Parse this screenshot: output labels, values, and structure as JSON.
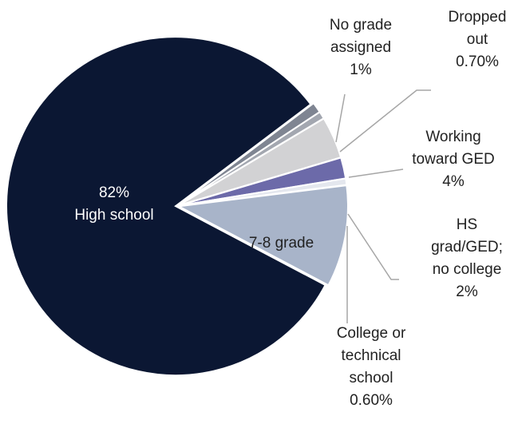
{
  "chart_data": {
    "type": "pie",
    "categories": [
      "High school",
      "No grade assigned",
      "Dropped out",
      "Working toward GED",
      "HS grad/GED; no college",
      "College or technical school",
      "7-8 grade"
    ],
    "values": [
      82,
      1,
      0.7,
      4,
      2,
      0.6,
      9.7
    ],
    "value_labels": [
      "82%",
      "1%",
      "0.70%",
      "4%",
      "2%",
      "0.60%",
      null
    ],
    "colors": [
      "#0b1733",
      "#7f8592",
      "#a3a7b0",
      "#d2d2d4",
      "#6c6aa9",
      "#e4e7ee",
      "#a8b4c9"
    ]
  }
}
